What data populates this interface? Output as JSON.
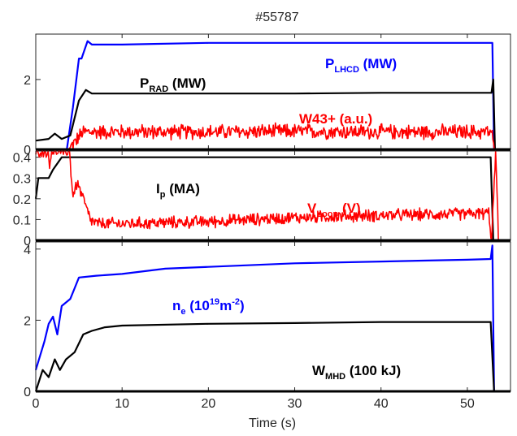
{
  "chart_data": {
    "type": "line",
    "title": "#55787",
    "xlabel": "Time (s)",
    "xlim": [
      0,
      55
    ],
    "x_ticks": [
      "0",
      "10",
      "20",
      "30",
      "40",
      "50"
    ],
    "colors": {
      "blue": "#0000ff",
      "red": "#ff0000",
      "black": "#000000"
    },
    "panels": [
      {
        "ylim": [
          0,
          3.3
        ],
        "y_ticks": [
          "0",
          "2"
        ],
        "series": [
          {
            "name": "P_LHCD (MW)",
            "label": {
              "main": "P",
              "sub": "LHCD",
              "rest": " (MW)"
            },
            "color": "blue",
            "points": [
              [
                0,
                0
              ],
              [
                3.6,
                0
              ],
              [
                4.3,
                1.2
              ],
              [
                5,
                2.6
              ],
              [
                5.3,
                2.6
              ],
              [
                6,
                3.1
              ],
              [
                6.5,
                3.0
              ],
              [
                7.5,
                3.0
              ],
              [
                10,
                3.0
              ],
              [
                20,
                3.05
              ],
              [
                30,
                3.05
              ],
              [
                40,
                3.05
              ],
              [
                52.9,
                3.05
              ],
              [
                53.1,
                0
              ],
              [
                55,
                0
              ]
            ]
          },
          {
            "name": "P_RAD (MW)",
            "label": {
              "main": "P",
              "sub": "RAD",
              "rest": " (MW)"
            },
            "color": "black",
            "points": [
              [
                0,
                0.25
              ],
              [
                1.5,
                0.3
              ],
              [
                2.2,
                0.45
              ],
              [
                3,
                0.3
              ],
              [
                4,
                0.4
              ],
              [
                5,
                1.4
              ],
              [
                5.8,
                1.7
              ],
              [
                6.5,
                1.6
              ],
              [
                10,
                1.6
              ],
              [
                20,
                1.6
              ],
              [
                30,
                1.6
              ],
              [
                40,
                1.62
              ],
              [
                52.8,
                1.62
              ],
              [
                53,
                2.0
              ],
              [
                53.2,
                0
              ],
              [
                55,
                0
              ]
            ]
          },
          {
            "name": "W43+ (a.u.)",
            "label": {
              "main": "W43+ (a.u.)",
              "sub": "",
              "rest": ""
            },
            "color": "red",
            "noise": 0.18,
            "points": [
              [
                0,
                0
              ],
              [
                3.8,
                0
              ],
              [
                4.5,
                0.2
              ],
              [
                5.5,
                0.5
              ],
              [
                10,
                0.5
              ],
              [
                20,
                0.5
              ],
              [
                30,
                0.52
              ],
              [
                40,
                0.5
              ],
              [
                52.8,
                0.5
              ],
              [
                53.1,
                0
              ],
              [
                55,
                0
              ]
            ]
          }
        ]
      },
      {
        "ylim": [
          0,
          0.43
        ],
        "y_ticks": [
          "0",
          "0.1",
          "0.2",
          "0.3",
          "0.4"
        ],
        "series": [
          {
            "name": "I_p (MA)",
            "label": {
              "main": "I",
              "sub": "p",
              "rest": " (MA)"
            },
            "color": "black",
            "points": [
              [
                0,
                0.2
              ],
              [
                0.3,
                0.3
              ],
              [
                1.5,
                0.3
              ],
              [
                2,
                0.34
              ],
              [
                3,
                0.4
              ],
              [
                10,
                0.4
              ],
              [
                20,
                0.4
              ],
              [
                30,
                0.4
              ],
              [
                40,
                0.4
              ],
              [
                52.7,
                0.4
              ],
              [
                53,
                0
              ],
              [
                55,
                0
              ]
            ]
          },
          {
            "name": "V_Loop (V)",
            "label": {
              "main": "V",
              "sub": "Loop",
              "rest": " (V)"
            },
            "color": "red",
            "noise": 0.025,
            "points": [
              [
                0,
                0.43
              ],
              [
                1.4,
                0.43
              ],
              [
                1.6,
                0.35
              ],
              [
                1.8,
                0.43
              ],
              [
                3.9,
                0.43
              ],
              [
                4.3,
                0.21
              ],
              [
                4.8,
                0.28
              ],
              [
                5.5,
                0.2
              ],
              [
                6.3,
                0.1
              ],
              [
                7,
                0.08
              ],
              [
                10,
                0.08
              ],
              [
                20,
                0.09
              ],
              [
                30,
                0.11
              ],
              [
                40,
                0.12
              ],
              [
                52.5,
                0.13
              ],
              [
                52.8,
                0
              ],
              [
                53.3,
                0.43
              ],
              [
                53.6,
                0
              ],
              [
                55,
                0
              ]
            ]
          }
        ]
      },
      {
        "ylim": [
          0,
          4.2
        ],
        "y_ticks": [
          "0",
          "2",
          "4"
        ],
        "series": [
          {
            "name": "n_e (10^19 m^-2)",
            "label": {
              "main": "n",
              "sub": "e",
              "rest": " (10",
              "sup": "19",
              "rest2": "m",
              "sup2": "-2",
              "rest3": ")"
            },
            "color": "blue",
            "points": [
              [
                0,
                0.6
              ],
              [
                0.5,
                1.0
              ],
              [
                1,
                1.4
              ],
              [
                1.5,
                1.9
              ],
              [
                2,
                2.1
              ],
              [
                2.5,
                1.6
              ],
              [
                3,
                2.4
              ],
              [
                4,
                2.6
              ],
              [
                4.5,
                2.9
              ],
              [
                5,
                3.2
              ],
              [
                7,
                3.25
              ],
              [
                10,
                3.3
              ],
              [
                15,
                3.45
              ],
              [
                20,
                3.5
              ],
              [
                30,
                3.6
              ],
              [
                40,
                3.65
              ],
              [
                50,
                3.7
              ],
              [
                52.7,
                3.72
              ],
              [
                52.9,
                4.1
              ],
              [
                53.1,
                0
              ],
              [
                55,
                0
              ]
            ]
          },
          {
            "name": "W_MHD (100 kJ)",
            "label": {
              "main": "W",
              "sub": "MHD",
              "rest": " (100 kJ)"
            },
            "color": "black",
            "points": [
              [
                0,
                0
              ],
              [
                0.8,
                0.6
              ],
              [
                1.5,
                0.4
              ],
              [
                2.2,
                0.9
              ],
              [
                2.8,
                0.6
              ],
              [
                3.5,
                0.9
              ],
              [
                4.5,
                1.1
              ],
              [
                5.5,
                1.6
              ],
              [
                6.5,
                1.7
              ],
              [
                8,
                1.8
              ],
              [
                10,
                1.85
              ],
              [
                20,
                1.9
              ],
              [
                30,
                1.92
              ],
              [
                40,
                1.95
              ],
              [
                52.7,
                1.95
              ],
              [
                53.1,
                0
              ],
              [
                55,
                0
              ]
            ]
          }
        ]
      }
    ]
  }
}
